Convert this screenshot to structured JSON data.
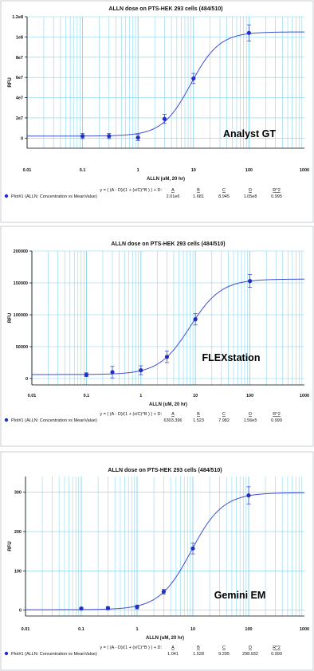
{
  "chart_data": [
    {
      "type": "scatter",
      "title": "ALLN dose on PTS-HEK 293 cells (484/510)",
      "xlabel": "ALLN (uM, 20 hr)",
      "ylabel": "RFU",
      "xscale": "log",
      "xlim": [
        0.01,
        1000
      ],
      "x_ticks": [
        "0.01",
        "0.1",
        "1",
        "10",
        "100",
        "1000"
      ],
      "ylim": [
        -10000000,
        120000000
      ],
      "y_ticks": [
        {
          "v": 0,
          "label": "0"
        },
        {
          "v": 20000000,
          "label": "2e7"
        },
        {
          "v": 40000000,
          "label": "4e7"
        },
        {
          "v": 60000000,
          "label": "6e7"
        },
        {
          "v": 80000000,
          "label": "8e7"
        },
        {
          "v": 100000000,
          "label": "1e8"
        },
        {
          "v": 120000000,
          "label": "1.2e8"
        }
      ],
      "grid": true,
      "instrument_label": "Analyst GT",
      "points": [
        {
          "x": 0.1,
          "y": 2000000,
          "err": 2500000
        },
        {
          "x": 0.3,
          "y": 2000000,
          "err": 2500000
        },
        {
          "x": 1,
          "y": 500000,
          "err": 3000000
        },
        {
          "x": 3,
          "y": 19000000,
          "err": 4500000
        },
        {
          "x": 10,
          "y": 59000000,
          "err": 5000000
        },
        {
          "x": 100,
          "y": 104000000,
          "err": 8000000
        }
      ],
      "fit": {
        "A": 2010000,
        "B": 1.681,
        "C": 8.945,
        "D": 105000000
      },
      "fit_table": {
        "equation": "y = ( (A - D)/(1 + (x/C)^B ) ) + D:",
        "series": "Plot#1 (ALLN: Concentration vs MeanValue)",
        "headers": [
          "A",
          "B",
          "C",
          "D",
          "R^2"
        ],
        "values": [
          "2.01e6",
          "1.681",
          "8.945",
          "1.05e8",
          "0.995"
        ]
      }
    },
    {
      "type": "scatter",
      "title": "ALLN dose on PTS-HEK 293 cells (484/510)",
      "xlabel": "ALLN (uM, 20 hr)",
      "ylabel": "RFU",
      "xscale": "log",
      "xlim": [
        0.01,
        1000
      ],
      "x_ticks": [
        "0.01",
        "0.1",
        "1",
        "10",
        "100",
        "1000"
      ],
      "ylim": [
        -10000,
        200000
      ],
      "y_ticks": [
        {
          "v": 0,
          "label": "0"
        },
        {
          "v": 50000,
          "label": "50000"
        },
        {
          "v": 100000,
          "label": "100000"
        },
        {
          "v": 150000,
          "label": "150000"
        },
        {
          "v": 200000,
          "label": "200000"
        }
      ],
      "grid": true,
      "instrument_label": "FLEXstation",
      "points": [
        {
          "x": 0.1,
          "y": 6000,
          "err": 3000
        },
        {
          "x": 0.3,
          "y": 10000,
          "err": 9000
        },
        {
          "x": 1,
          "y": 13000,
          "err": 7000
        },
        {
          "x": 3,
          "y": 34000,
          "err": 9000
        },
        {
          "x": 10,
          "y": 93000,
          "err": 9000
        },
        {
          "x": 100,
          "y": 153000,
          "err": 10000
        }
      ],
      "fit": {
        "A": 6303.396,
        "B": 1.523,
        "C": 7.982,
        "D": 156000
      },
      "fit_table": {
        "equation": "y = ( (A - D)/(1 + (x/C)^B ) ) + D:",
        "series": "Plot#1 (ALLN: Concentration vs MeanValue)",
        "headers": [
          "A",
          "B",
          "C",
          "D",
          "R^2"
        ],
        "values": [
          "6303.396",
          "1.523",
          "7.982",
          "1.56e5",
          "0.999"
        ]
      }
    },
    {
      "type": "scatter",
      "title": "ALLN dose on PTS-HEK 293 cells (484/510)",
      "xlabel": "ALLN (uM, 20 hr)",
      "ylabel": "RFU",
      "xscale": "log",
      "xlim": [
        0.01,
        1000
      ],
      "x_ticks": [
        "0.01",
        "0.1",
        "1",
        "10",
        "100",
        "1000"
      ],
      "ylim": [
        -15,
        340
      ],
      "y_ticks": [
        {
          "v": 0,
          "label": "0"
        },
        {
          "v": 100,
          "label": "100"
        },
        {
          "v": 200,
          "label": "200"
        },
        {
          "v": 300,
          "label": "300"
        }
      ],
      "grid": true,
      "instrument_label": "Gemini EM",
      "points": [
        {
          "x": 0.1,
          "y": 4,
          "err": 3
        },
        {
          "x": 0.3,
          "y": 5,
          "err": 4
        },
        {
          "x": 1,
          "y": 8,
          "err": 5
        },
        {
          "x": 3,
          "y": 47,
          "err": 6
        },
        {
          "x": 10,
          "y": 157,
          "err": 14
        },
        {
          "x": 100,
          "y": 292,
          "err": 22
        }
      ],
      "fit": {
        "A": 1.041,
        "B": 1.528,
        "C": 9.295,
        "D": 298.932
      },
      "fit_table": {
        "equation": "y = ( (A - D)/(1 + (x/C)^B ) ) + D:",
        "series": "Plot#1 (ALLN: Concentration vs MeanValue)",
        "headers": [
          "A",
          "B",
          "C",
          "D",
          "R^2"
        ],
        "values": [
          "1.041",
          "1.528",
          "9.295",
          "298.932",
          "0.999"
        ]
      }
    }
  ],
  "colors": {
    "grid": "#7fd3ee",
    "curve": "#3d4fd6",
    "point": "#1f2fc4",
    "axis": "#000000",
    "border": "#c9ccd6"
  }
}
